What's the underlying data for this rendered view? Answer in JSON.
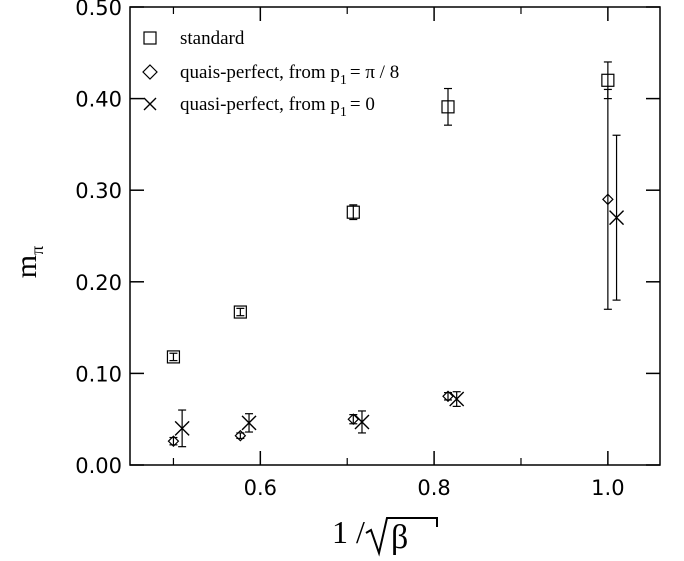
{
  "chart_data": {
    "type": "scatter",
    "title": "",
    "xlabel": {
      "prefix": "1 /",
      "radicand": "β"
    },
    "ylabel": {
      "main": "m",
      "sub": "π"
    },
    "xlim": [
      0.45,
      1.06
    ],
    "ylim": [
      0.0,
      0.5
    ],
    "xticks": [
      0.6,
      0.8,
      1.0
    ],
    "xtick_labels": [
      "0.6",
      "0.8",
      "1.0"
    ],
    "xminor": [
      0.5,
      0.7,
      0.9
    ],
    "yticks": [
      0.0,
      0.1,
      0.2,
      0.3,
      0.4,
      0.5
    ],
    "ytick_labels": [
      "0.00",
      "0.10",
      "0.20",
      "0.30",
      "0.40",
      "0.50"
    ],
    "grid": false,
    "legend_position": "top-left",
    "series": [
      {
        "name": "standard",
        "marker": "square",
        "points": [
          {
            "x": 0.5,
            "y": 0.118,
            "err": 0.004
          },
          {
            "x": 0.577,
            "y": 0.167,
            "err": 0.004
          },
          {
            "x": 0.707,
            "y": 0.276,
            "err": 0.008
          },
          {
            "x": 0.816,
            "y": 0.391,
            "err": 0.02
          },
          {
            "x": 1.0,
            "y": 0.42,
            "err": 0.02
          }
        ]
      },
      {
        "name": "quais-perfect,  from  p",
        "name_sub": "1",
        "name_tail": "=  π / 8",
        "marker": "diamond",
        "points": [
          {
            "x": 0.5,
            "y": 0.026,
            "err": 0.004
          },
          {
            "x": 0.577,
            "y": 0.032,
            "err": 0.003
          },
          {
            "x": 0.707,
            "y": 0.05,
            "err": 0.005
          },
          {
            "x": 0.816,
            "y": 0.075,
            "err": 0.004
          },
          {
            "x": 1.0,
            "y": 0.29,
            "err": 0.12
          }
        ]
      },
      {
        "name": "quasi-perfect,  from  p",
        "name_sub": "1",
        "name_tail": "= 0",
        "marker": "cross",
        "points": [
          {
            "x": 0.51,
            "y": 0.04,
            "err": 0.02
          },
          {
            "x": 0.587,
            "y": 0.046,
            "err": 0.01
          },
          {
            "x": 0.717,
            "y": 0.047,
            "err": 0.012
          },
          {
            "x": 0.826,
            "y": 0.072,
            "err": 0.008
          },
          {
            "x": 1.01,
            "y": 0.27,
            "err": 0.09
          }
        ]
      }
    ]
  }
}
